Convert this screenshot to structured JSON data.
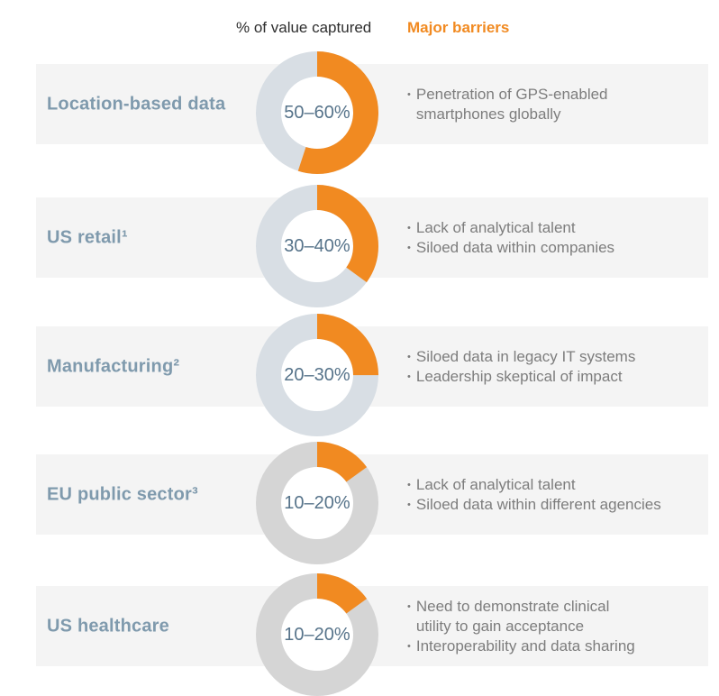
{
  "header": {
    "value_col": "% of value captured",
    "barriers_col": "Major barriers"
  },
  "colors": {
    "orange": "#F18A21",
    "ring_bluegray": "#D8DEE4",
    "ring_gray": "#D5D5D5",
    "band_bg": "#F4F4F4",
    "label_text": "#7F9AAD",
    "range_text": "#56738A",
    "barrier_text": "#7D7D7D",
    "header_text": "#2E2E2E"
  },
  "bullet_char": "•",
  "rows": [
    {
      "label": "Location-based data",
      "range": "50–60%",
      "pct": 55,
      "ring_color": "#D8DEE4",
      "barriers": [
        "Penetration of GPS-enabled\nsmartphones globally"
      ]
    },
    {
      "label": "US retail¹",
      "range": "30–40%",
      "pct": 35,
      "ring_color": "#D8DEE4",
      "barriers": [
        "Lack of analytical talent",
        "Siloed data within companies"
      ]
    },
    {
      "label": "Manufacturing²",
      "range": "20–30%",
      "pct": 25,
      "ring_color": "#D8DEE4",
      "barriers": [
        "Siloed data in legacy IT systems",
        "Leadership skeptical of impact"
      ]
    },
    {
      "label": "EU public sector³",
      "range": "10–20%",
      "pct": 15,
      "ring_color": "#D5D5D5",
      "barriers": [
        "Lack of analytical talent",
        "Siloed data within different agencies"
      ]
    },
    {
      "label": "US healthcare",
      "range": "10–20%",
      "pct": 15,
      "ring_color": "#D5D5D5",
      "barriers": [
        "Need to demonstrate clinical\nutility to gain acceptance",
        "Interoperability and data sharing"
      ]
    }
  ],
  "chart_data": {
    "type": "pie",
    "subtype": "donut-gauge-per-row",
    "title": "% of value captured",
    "annotations_header": "Major barriers",
    "categories": [
      "Location-based data",
      "US retail¹",
      "Manufacturing²",
      "EU public sector³",
      "US healthcare"
    ],
    "value_ranges_pct": [
      [
        50,
        60
      ],
      [
        30,
        40
      ],
      [
        20,
        30
      ],
      [
        10,
        20
      ],
      [
        10,
        20
      ]
    ],
    "value_labels": [
      "50–60%",
      "30–40%",
      "20–30%",
      "10–20%",
      "10–20%"
    ],
    "rendered_fill_pct": [
      55,
      35,
      25,
      15,
      15
    ],
    "arc_start": "12 o'clock, clockwise",
    "legend": "none",
    "annotations": [
      [
        "Penetration of GPS-enabled smartphones globally"
      ],
      [
        "Lack of analytical talent",
        "Siloed data within companies"
      ],
      [
        "Siloed data in legacy IT systems",
        "Leadership skeptical of impact"
      ],
      [
        "Lack of analytical talent",
        "Siloed data within different agencies"
      ],
      [
        "Need to demonstrate clinical utility to gain acceptance",
        "Interoperability and data sharing"
      ]
    ]
  }
}
